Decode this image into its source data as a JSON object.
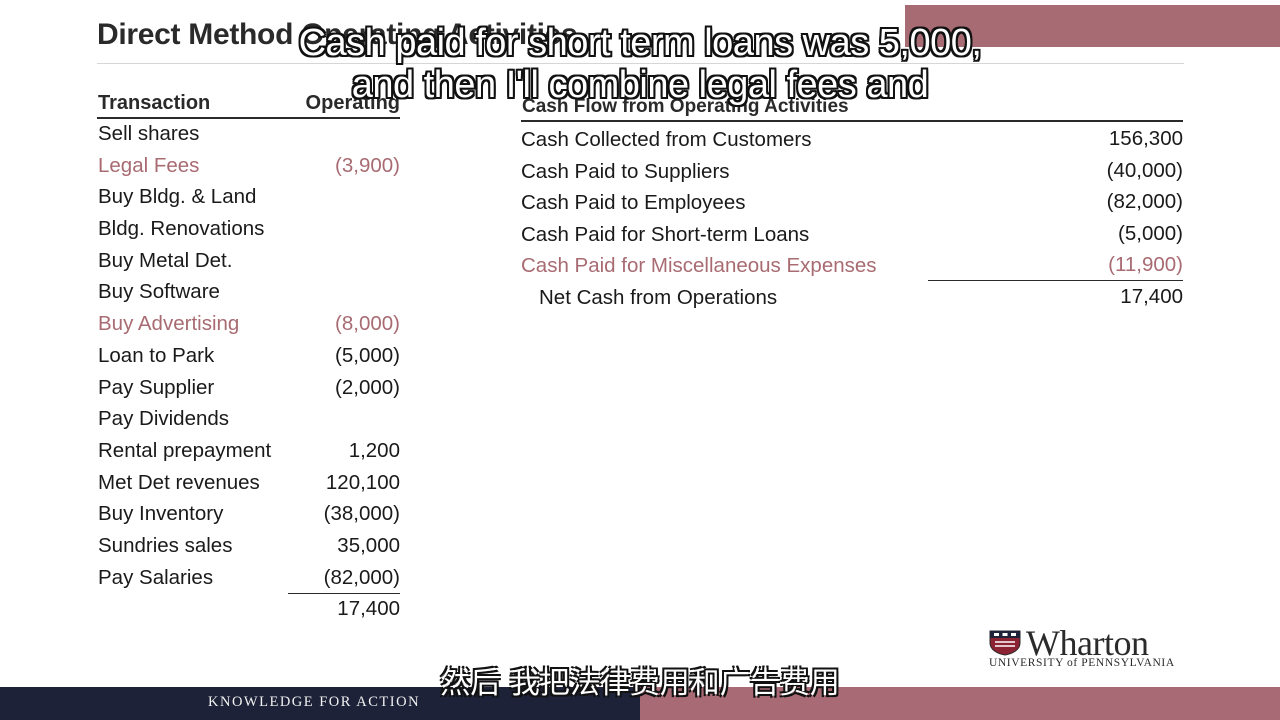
{
  "slide": {
    "title": "Direct Method Operating Activities",
    "left_table": {
      "col_transaction": "Transaction",
      "col_operating": "Operating",
      "rows": [
        {
          "label": "Sell shares",
          "value": ""
        },
        {
          "label": "Legal Fees",
          "value": "(3,900)"
        },
        {
          "label": "Buy Bldg. & Land",
          "value": ""
        },
        {
          "label": "Bldg. Renovations",
          "value": ""
        },
        {
          "label": "Buy Metal Det.",
          "value": ""
        },
        {
          "label": "Buy Software",
          "value": ""
        },
        {
          "label": "Buy Advertising",
          "value": "(8,000)"
        },
        {
          "label": "Loan to Park",
          "value": "(5,000)"
        },
        {
          "label": "Pay Supplier",
          "value": "(2,000)"
        },
        {
          "label": "Pay Dividends",
          "value": ""
        },
        {
          "label": "Rental prepayment",
          "value": "1,200"
        },
        {
          "label": "Met Det revenues",
          "value": "120,100"
        },
        {
          "label": "Buy Inventory",
          "value": "(38,000)"
        },
        {
          "label": "Sundries sales",
          "value": "35,000"
        },
        {
          "label": "Pay Salaries",
          "value": "(82,000)"
        }
      ],
      "total": "17,400"
    },
    "right_table": {
      "heading": "Cash Flow from Operating Activities",
      "rows": [
        {
          "label": "Cash Collected from Customers",
          "value": "156,300"
        },
        {
          "label": "Cash Paid to Suppliers",
          "value": "(40,000)"
        },
        {
          "label": "Cash Paid to Employees",
          "value": "(82,000)"
        },
        {
          "label": "Cash Paid for Short-term Loans",
          "value": "(5,000)"
        },
        {
          "label": "Cash Paid for Miscellaneous Expenses",
          "value": "(11,900)"
        }
      ],
      "net_label": "Net Cash from Operations",
      "net_value": "17,400"
    },
    "logo": {
      "wordmark": "Wharton",
      "subtitle": "UNIVERSITY of PENNSYLVANIA"
    },
    "footer_tagline": "KNOWLEDGE FOR ACTION"
  },
  "captions": {
    "line1": "Cash paid for short term loans was 5,000,",
    "line2": "and then I'll combine legal fees and",
    "zh": "然后 我把法律费用和广告费用"
  },
  "colors": {
    "highlight": "#a86b72",
    "footer_navy": "#1d2238",
    "footer_rose": "#a86a74"
  }
}
